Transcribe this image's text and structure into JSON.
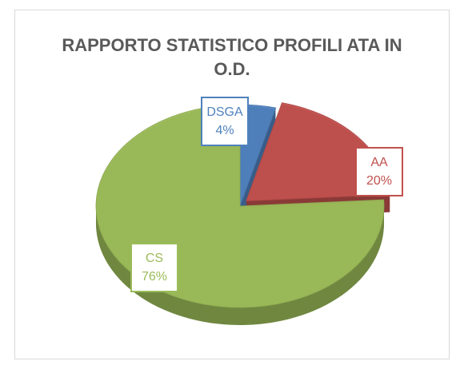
{
  "chart_data": {
    "type": "pie",
    "title": "RAPPORTO STATISTICO PROFILI ATA IN O.D.",
    "categories": [
      "DSGA",
      "AA",
      "CS"
    ],
    "values": [
      4,
      20,
      76
    ],
    "value_labels": [
      "4%",
      "20%",
      "76%"
    ],
    "colors": [
      "#4f81bd",
      "#c0504d",
      "#9bbb59"
    ]
  }
}
